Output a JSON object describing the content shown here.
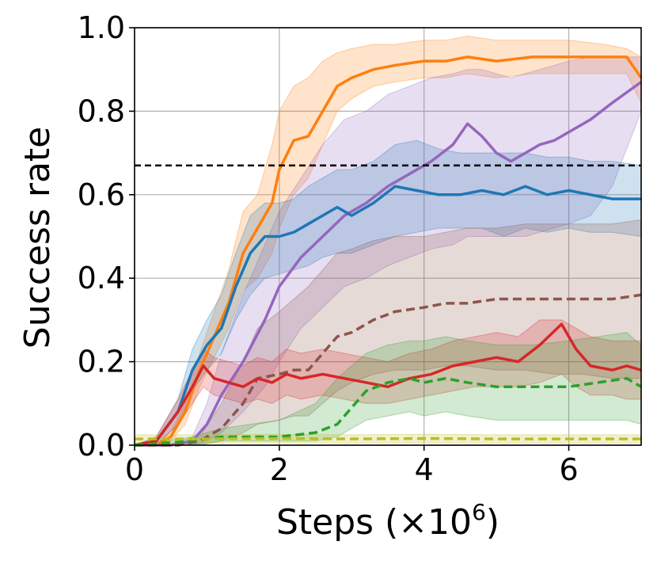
{
  "chart_data": {
    "type": "line",
    "xlabel": "Steps (×10",
    "xlabel_exponent": "6",
    "xlabel_suffix": ")",
    "ylabel": "Success rate",
    "xlim": [
      0,
      7
    ],
    "ylim": [
      0,
      1
    ],
    "x_ticks": [
      0,
      2,
      4,
      6
    ],
    "y_ticks": [
      0.0,
      0.2,
      0.4,
      0.6,
      0.8,
      1.0
    ],
    "x_tick_labels": [
      "0",
      "2",
      "4",
      "6"
    ],
    "y_tick_labels": [
      "0.0",
      "0.2",
      "0.4",
      "0.6",
      "0.8",
      "1.0"
    ],
    "grid": true,
    "reference_line": {
      "y": 0.67,
      "color": "#000000",
      "dash": "dashed"
    },
    "series": [
      {
        "color": "#ff7f0e",
        "dash": "solid",
        "x": [
          0,
          0.3,
          0.5,
          0.7,
          0.9,
          1.1,
          1.3,
          1.5,
          1.7,
          1.9,
          2.0,
          2.2,
          2.4,
          2.6,
          2.8,
          3.0,
          3.3,
          3.6,
          4.0,
          4.3,
          4.6,
          5.0,
          5.5,
          6.0,
          6.5,
          6.8,
          7.0
        ],
        "mean": [
          0,
          0,
          0.02,
          0.08,
          0.18,
          0.26,
          0.34,
          0.46,
          0.52,
          0.58,
          0.66,
          0.73,
          0.74,
          0.8,
          0.86,
          0.88,
          0.9,
          0.91,
          0.92,
          0.92,
          0.93,
          0.92,
          0.93,
          0.93,
          0.93,
          0.93,
          0.88
        ],
        "lower": [
          0,
          0,
          0.01,
          0.05,
          0.14,
          0.21,
          0.28,
          0.37,
          0.4,
          0.46,
          0.52,
          0.6,
          0.64,
          0.72,
          0.8,
          0.83,
          0.86,
          0.87,
          0.88,
          0.88,
          0.89,
          0.88,
          0.89,
          0.89,
          0.89,
          0.89,
          0.82
        ],
        "upper": [
          0,
          0,
          0.03,
          0.1,
          0.22,
          0.32,
          0.42,
          0.56,
          0.6,
          0.72,
          0.8,
          0.86,
          0.88,
          0.92,
          0.94,
          0.95,
          0.96,
          0.96,
          0.97,
          0.97,
          0.98,
          0.97,
          0.97,
          0.97,
          0.96,
          0.95,
          0.93
        ]
      },
      {
        "color": "#9467bd",
        "dash": "solid",
        "x": [
          0,
          0.5,
          0.8,
          1.0,
          1.2,
          1.5,
          1.8,
          2.0,
          2.3,
          2.6,
          2.9,
          3.2,
          3.5,
          3.8,
          4.1,
          4.4,
          4.6,
          4.8,
          5.0,
          5.2,
          5.4,
          5.6,
          5.8,
          6.0,
          6.3,
          6.6,
          7.0
        ],
        "mean": [
          0,
          0,
          0.01,
          0.05,
          0.12,
          0.2,
          0.3,
          0.38,
          0.45,
          0.5,
          0.55,
          0.58,
          0.62,
          0.65,
          0.68,
          0.72,
          0.77,
          0.74,
          0.7,
          0.68,
          0.7,
          0.72,
          0.73,
          0.75,
          0.78,
          0.82,
          0.87
        ],
        "lower": [
          0,
          0,
          0.0,
          0.01,
          0.03,
          0.08,
          0.14,
          0.2,
          0.28,
          0.33,
          0.38,
          0.4,
          0.43,
          0.45,
          0.47,
          0.48,
          0.5,
          0.5,
          0.5,
          0.5,
          0.5,
          0.51,
          0.52,
          0.53,
          0.55,
          0.62,
          0.8
        ],
        "upper": [
          0,
          0,
          0.02,
          0.1,
          0.22,
          0.36,
          0.48,
          0.56,
          0.64,
          0.72,
          0.78,
          0.8,
          0.84,
          0.86,
          0.88,
          0.89,
          0.9,
          0.9,
          0.89,
          0.88,
          0.89,
          0.9,
          0.91,
          0.92,
          0.93,
          0.93,
          0.93
        ]
      },
      {
        "color": "#1f77b4",
        "dash": "solid",
        "x": [
          0,
          0.3,
          0.6,
          0.8,
          1.0,
          1.2,
          1.4,
          1.6,
          1.8,
          2.0,
          2.2,
          2.4,
          2.6,
          2.8,
          3.0,
          3.3,
          3.6,
          3.9,
          4.2,
          4.5,
          4.8,
          5.1,
          5.4,
          5.7,
          6.0,
          6.3,
          6.6,
          7.0
        ],
        "mean": [
          0,
          0.01,
          0.08,
          0.18,
          0.24,
          0.28,
          0.38,
          0.46,
          0.5,
          0.5,
          0.51,
          0.53,
          0.55,
          0.57,
          0.55,
          0.58,
          0.62,
          0.61,
          0.6,
          0.6,
          0.61,
          0.6,
          0.62,
          0.6,
          0.61,
          0.6,
          0.59,
          0.59
        ],
        "lower": [
          0,
          0.0,
          0.05,
          0.13,
          0.18,
          0.22,
          0.3,
          0.36,
          0.4,
          0.41,
          0.42,
          0.43,
          0.45,
          0.46,
          0.46,
          0.48,
          0.5,
          0.51,
          0.52,
          0.52,
          0.52,
          0.5,
          0.52,
          0.51,
          0.52,
          0.51,
          0.51,
          0.5
        ],
        "upper": [
          0,
          0.02,
          0.11,
          0.23,
          0.3,
          0.36,
          0.46,
          0.55,
          0.58,
          0.58,
          0.59,
          0.62,
          0.64,
          0.66,
          0.66,
          0.68,
          0.72,
          0.73,
          0.71,
          0.7,
          0.7,
          0.7,
          0.7,
          0.69,
          0.69,
          0.68,
          0.68,
          0.67
        ]
      },
      {
        "color": "#8c564b",
        "dash": "dashed",
        "x": [
          0,
          0.6,
          0.9,
          1.2,
          1.5,
          1.7,
          2.0,
          2.2,
          2.4,
          2.6,
          2.8,
          3.0,
          3.3,
          3.6,
          4.0,
          4.3,
          4.6,
          5.0,
          5.4,
          5.8,
          6.2,
          6.6,
          7.0
        ],
        "mean": [
          0,
          0,
          0.01,
          0.04,
          0.1,
          0.16,
          0.17,
          0.18,
          0.18,
          0.22,
          0.26,
          0.27,
          0.3,
          0.32,
          0.33,
          0.34,
          0.34,
          0.35,
          0.35,
          0.35,
          0.35,
          0.35,
          0.36
        ],
        "lower": [
          0,
          0,
          0.0,
          0.01,
          0.03,
          0.05,
          0.06,
          0.07,
          0.07,
          0.1,
          0.13,
          0.15,
          0.17,
          0.18,
          0.18,
          0.19,
          0.19,
          0.18,
          0.18,
          0.17,
          0.17,
          0.16,
          0.16
        ],
        "upper": [
          0,
          0,
          0.02,
          0.1,
          0.2,
          0.28,
          0.32,
          0.35,
          0.38,
          0.42,
          0.46,
          0.47,
          0.49,
          0.5,
          0.5,
          0.51,
          0.52,
          0.52,
          0.53,
          0.53,
          0.53,
          0.53,
          0.54
        ]
      },
      {
        "color": "#d62728",
        "dash": "solid",
        "x": [
          0,
          0.3,
          0.6,
          0.8,
          0.95,
          1.1,
          1.3,
          1.5,
          1.7,
          1.9,
          2.1,
          2.3,
          2.6,
          2.9,
          3.2,
          3.5,
          3.8,
          4.1,
          4.4,
          4.7,
          5.0,
          5.3,
          5.6,
          5.9,
          6.1,
          6.3,
          6.6,
          6.8,
          7.0
        ],
        "mean": [
          0,
          0.01,
          0.08,
          0.14,
          0.19,
          0.16,
          0.15,
          0.14,
          0.16,
          0.15,
          0.17,
          0.16,
          0.17,
          0.16,
          0.15,
          0.14,
          0.16,
          0.17,
          0.19,
          0.2,
          0.21,
          0.2,
          0.24,
          0.29,
          0.23,
          0.19,
          0.18,
          0.19,
          0.18
        ],
        "lower": [
          0,
          0.0,
          0.05,
          0.1,
          0.14,
          0.12,
          0.11,
          0.1,
          0.11,
          0.1,
          0.12,
          0.11,
          0.12,
          0.11,
          0.1,
          0.1,
          0.11,
          0.12,
          0.13,
          0.14,
          0.14,
          0.14,
          0.15,
          0.17,
          0.14,
          0.12,
          0.12,
          0.11,
          0.11
        ],
        "upper": [
          0,
          0.02,
          0.11,
          0.18,
          0.23,
          0.21,
          0.2,
          0.19,
          0.21,
          0.2,
          0.23,
          0.22,
          0.23,
          0.22,
          0.21,
          0.2,
          0.22,
          0.23,
          0.25,
          0.26,
          0.27,
          0.26,
          0.3,
          0.3,
          0.28,
          0.26,
          0.25,
          0.25,
          0.25
        ]
      },
      {
        "color": "#2ca02c",
        "dash": "dashed",
        "x": [
          0,
          0.8,
          1.2,
          1.6,
          2.0,
          2.5,
          2.8,
          3.0,
          3.2,
          3.5,
          3.8,
          4.0,
          4.3,
          4.6,
          5.0,
          5.5,
          6.0,
          6.4,
          6.8,
          7.0
        ],
        "mean": [
          0,
          0.01,
          0.02,
          0.02,
          0.02,
          0.03,
          0.05,
          0.09,
          0.13,
          0.15,
          0.16,
          0.15,
          0.16,
          0.15,
          0.14,
          0.14,
          0.14,
          0.15,
          0.16,
          0.14
        ],
        "lower": [
          0,
          0.0,
          0.01,
          0.01,
          0.01,
          0.01,
          0.02,
          0.04,
          0.06,
          0.07,
          0.08,
          0.07,
          0.08,
          0.07,
          0.06,
          0.06,
          0.06,
          0.06,
          0.06,
          0.05
        ],
        "upper": [
          0,
          0.02,
          0.04,
          0.05,
          0.06,
          0.1,
          0.16,
          0.19,
          0.22,
          0.24,
          0.25,
          0.25,
          0.26,
          0.25,
          0.24,
          0.24,
          0.25,
          0.26,
          0.27,
          0.24
        ]
      },
      {
        "color": "#bcbd22",
        "dash": "dashed",
        "x": [
          0,
          1.0,
          2.0,
          3.0,
          4.0,
          5.0,
          6.0,
          7.0
        ],
        "mean": [
          0.015,
          0.015,
          0.016,
          0.015,
          0.016,
          0.015,
          0.015,
          0.015
        ],
        "lower": [
          0.005,
          0.005,
          0.006,
          0.005,
          0.006,
          0.005,
          0.005,
          0.005
        ],
        "upper": [
          0.025,
          0.025,
          0.026,
          0.025,
          0.026,
          0.025,
          0.025,
          0.025
        ]
      }
    ]
  }
}
